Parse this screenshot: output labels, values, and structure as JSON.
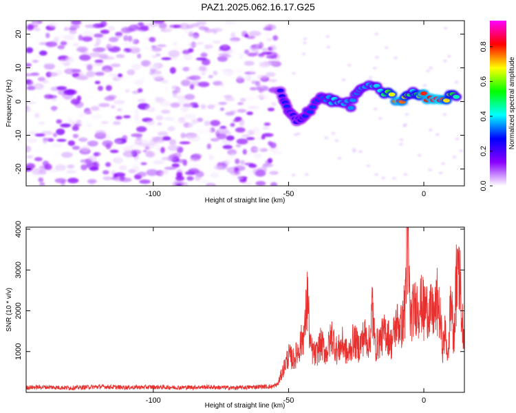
{
  "title": "PAZ1.2025.062.16.17.G25",
  "chart_data": [
    {
      "type": "heatmap",
      "xlabel": "Height of straight line (km)",
      "ylabel": "Frequency (Hz)",
      "xlim": [
        -147,
        15
      ],
      "ylim": [
        -25,
        24
      ],
      "x_ticks": [
        -100,
        -50,
        0
      ],
      "y_ticks": [
        -20,
        -10,
        0,
        10,
        20
      ],
      "colorbar": {
        "label": "Normalized spectral amplitude",
        "range": [
          0,
          0.95
        ],
        "ticks": [
          0.0,
          0.2,
          0.4,
          0.6,
          0.8
        ],
        "colors": [
          "#ffffff",
          "#8a00ff",
          "#0000ff",
          "#00ffff",
          "#00ff00",
          "#ffff00",
          "#ff0000",
          "#ff00ff"
        ]
      },
      "features": {
        "noise_region": {
          "x_range": [
            -147,
            -54
          ],
          "f_range": [
            -25,
            24
          ],
          "amplitude_range": [
            0.0,
            0.15
          ]
        },
        "signal_track": [
          {
            "x": -53,
            "f": 2.5,
            "amp": 0.25
          },
          {
            "x": -50,
            "f": -3,
            "amp": 0.3
          },
          {
            "x": -47,
            "f": -6,
            "amp": 0.25
          },
          {
            "x": -43,
            "f": -3,
            "amp": 0.3
          },
          {
            "x": -38,
            "f": 1.5,
            "amp": 0.3
          },
          {
            "x": -33,
            "f": 0,
            "amp": 0.4
          },
          {
            "x": -27,
            "f": -1,
            "amp": 0.35
          },
          {
            "x": -23,
            "f": 4.5,
            "amp": 0.35
          },
          {
            "x": -16,
            "f": 3.5,
            "amp": 0.4
          },
          {
            "x": -9,
            "f": 0,
            "amp": 0.85
          },
          {
            "x": -4,
            "f": 2.5,
            "amp": 0.4
          },
          {
            "x": 0,
            "f": 1.5,
            "amp": 0.8
          },
          {
            "x": 6,
            "f": 0.5,
            "amp": 0.85
          },
          {
            "x": 12,
            "f": 2,
            "amp": 0.45
          }
        ]
      }
    },
    {
      "type": "line",
      "xlabel": "Height of straight line (km)",
      "ylabel": "SNR (10 * v/v)",
      "xlim": [
        -147,
        15
      ],
      "ylim": [
        0,
        4050
      ],
      "x_ticks": [
        -100,
        -50,
        0
      ],
      "y_ticks": [
        1000,
        2000,
        3000,
        4000
      ],
      "series": [
        {
          "color": "#e8312f",
          "x": [
            -147,
            -140,
            -130,
            -120,
            -110,
            -100,
            -90,
            -80,
            -70,
            -60,
            -56,
            -54,
            -52,
            -50,
            -48,
            -46,
            -44,
            -43,
            -42,
            -40,
            -38,
            -36,
            -34,
            -32,
            -30,
            -28,
            -26,
            -24,
            -22,
            -20,
            -19,
            -18,
            -16,
            -14,
            -12,
            -10,
            -8,
            -7,
            -6,
            -5,
            -4,
            -2,
            0,
            2,
            4,
            5,
            6,
            7,
            8,
            9,
            10,
            11,
            12,
            13,
            14,
            15
          ],
          "y": [
            120,
            130,
            110,
            140,
            120,
            130,
            120,
            130,
            110,
            140,
            140,
            200,
            550,
            900,
            800,
            1100,
            1500,
            2500,
            1100,
            900,
            1200,
            950,
            1400,
            1000,
            1200,
            900,
            1300,
            1100,
            1400,
            1200,
            2200,
            1100,
            1300,
            1500,
            1200,
            1700,
            1600,
            2200,
            4000,
            1800,
            2000,
            2200,
            2100,
            2000,
            1900,
            2300,
            1800,
            1100,
            1500,
            800,
            2500,
            1200,
            2700,
            3400,
            1800,
            1500
          ]
        }
      ]
    }
  ]
}
